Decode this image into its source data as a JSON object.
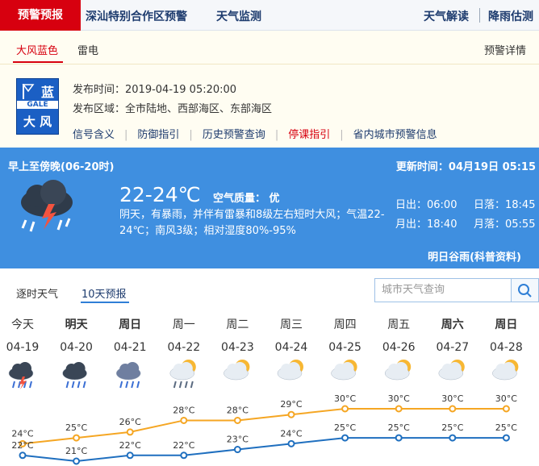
{
  "nav": {
    "active": "预警预报",
    "items": [
      "深汕特别合作区预警",
      "天气监测"
    ],
    "right": [
      "天气解读",
      "降雨估测"
    ]
  },
  "alert_tabs": {
    "items": [
      "大风蓝色",
      "雷电"
    ],
    "detail": "预警详情"
  },
  "alert": {
    "icon": {
      "level": "蓝",
      "code": "GALE",
      "name": "大 风"
    },
    "time": "发布时间：2019-04-19 05:20:00",
    "area": "发布区域：全市陆地、西部海区、东部海区",
    "links": [
      "信号含义",
      "防御指引",
      "历史预警查询",
      "停课指引",
      "省内城市预警信息"
    ]
  },
  "weather": {
    "period": "早上至傍晚(06-20时)",
    "updated": "更新时间：04月19日 05:15",
    "temperature": "22-24℃",
    "air_quality": "空气质量： 优",
    "description": "阴天，有暴雨，并伴有雷暴和8级左右短时大风；气温22-24℃；南风3级；相对湿度80%-95%",
    "sunrise": "日出：06:00",
    "sunset": "日落：18:45",
    "moonrise": "月出：18:40",
    "moonset": "月落：05:55",
    "note": "明日谷雨(科普资料)"
  },
  "forecast_tabs": {
    "items": [
      "逐时天气",
      "10天预报"
    ],
    "search_placeholder": "城市天气查询"
  },
  "chart_data": {
    "type": "line",
    "categories": [
      "今天",
      "明天",
      "周日",
      "周一",
      "周二",
      "周三",
      "周四",
      "周五",
      "周六",
      "周日"
    ],
    "dates": [
      "04-19",
      "04-20",
      "04-21",
      "04-22",
      "04-23",
      "04-24",
      "04-25",
      "04-26",
      "04-27",
      "04-28"
    ],
    "series": [
      {
        "color": "#f5a623",
        "values": [
          24,
          25,
          26,
          28,
          28,
          29,
          30,
          30,
          30,
          30
        ],
        "value_labels": [
          "24°C",
          "25°C",
          "26°C",
          "28°C",
          "28°C",
          "29°C",
          "30°C",
          "30°C",
          "30°C",
          "30°C"
        ]
      },
      {
        "color": "#1f6fbf",
        "values": [
          22,
          21,
          22,
          22,
          23,
          24,
          25,
          25,
          25,
          25
        ],
        "value_labels": [
          "22°C",
          "21°C",
          "22°C",
          "22°C",
          "23°C",
          "24°C",
          "25°C",
          "25°C",
          "25°C",
          "25°C"
        ]
      }
    ]
  }
}
